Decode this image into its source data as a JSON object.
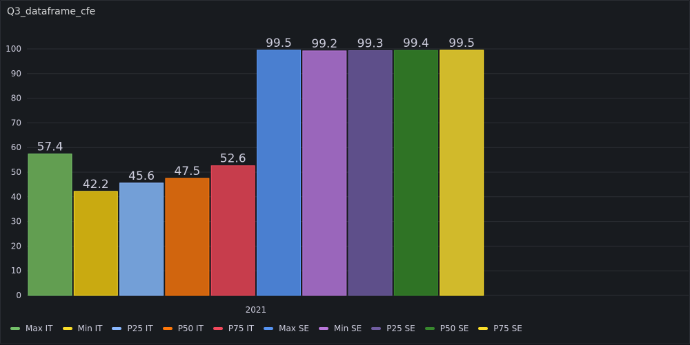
{
  "panel": {
    "title": "Q3_dataframe_cfe"
  },
  "chart_data": {
    "type": "bar",
    "categories": [
      "2021"
    ],
    "series": [
      {
        "name": "Max IT",
        "values": [
          57.4
        ],
        "color": "#73bf69"
      },
      {
        "name": "Min IT",
        "values": [
          42.2
        ],
        "color": "#fade2a"
      },
      {
        "name": "P25 IT",
        "values": [
          45.6
        ],
        "color": "#8ab8ff"
      },
      {
        "name": "P50 IT",
        "values": [
          47.5
        ],
        "color": "#ff780a"
      },
      {
        "name": "P75 IT",
        "values": [
          52.6
        ],
        "color": "#f2495c"
      },
      {
        "name": "Max SE",
        "values": [
          99.5
        ],
        "color": "#5794f2"
      },
      {
        "name": "Min SE",
        "values": [
          99.2
        ],
        "color": "#b877d9"
      },
      {
        "name": "P25 SE",
        "values": [
          99.3
        ],
        "color": "#705da0"
      },
      {
        "name": "P50 SE",
        "values": [
          99.4
        ],
        "color": "#37872d"
      },
      {
        "name": "P75 SE",
        "values": [
          99.5
        ],
        "color": "#fade2a"
      }
    ],
    "bar_fill": [
      "#629e51",
      "#c9aa11",
      "#739fd7",
      "#d1650e",
      "#c73d4c",
      "#4a7fd0",
      "#9a66bb",
      "#5e4f8a",
      "#2f7325",
      "#d1ba2b"
    ],
    "ylim": [
      0,
      100
    ],
    "yticks": [
      0,
      10,
      20,
      30,
      40,
      50,
      60,
      70,
      80,
      90,
      100
    ],
    "grid": true,
    "legend": "bottom",
    "title": "Q3_dataframe_cfe",
    "xlabel": "",
    "ylabel": ""
  }
}
